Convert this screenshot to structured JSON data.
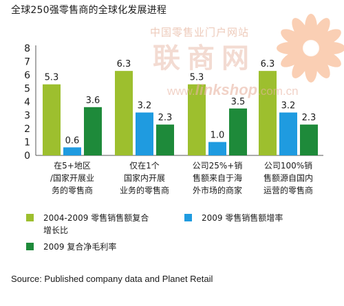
{
  "chart_data": {
    "type": "bar",
    "title": "全球250强零售商的全球化发展进程",
    "categories": [
      [
        "在5+地区",
        "/国家开展业",
        "务的零售商"
      ],
      [
        "仅在1个",
        "国家内开展",
        "业务的零售商"
      ],
      [
        "公司25%+销",
        "售额来自于海",
        "外市场的商家"
      ],
      [
        "公司100%销",
        "售额源自国内",
        "运营的零售商"
      ]
    ],
    "series": [
      {
        "name": "2004-2009 零售销售额复合增长比",
        "color": "#9dbf2e",
        "values": [
          5.3,
          6.3,
          5.3,
          6.3
        ]
      },
      {
        "name": "2009 零售销售额增率",
        "color": "#1f9be0",
        "values": [
          0.6,
          3.2,
          1.0,
          3.2
        ]
      },
      {
        "name": "2009 复合净毛利率",
        "color": "#1e8a3a",
        "values": [
          3.6,
          2.3,
          3.5,
          2.3
        ]
      }
    ],
    "data_labels": [
      [
        "5.3",
        "0.6",
        "3.6"
      ],
      [
        "6.3",
        "3.2",
        "2.3"
      ],
      [
        "5.3",
        "1.0",
        "3.5"
      ],
      [
        "6.3",
        "3.2",
        "2.3"
      ]
    ],
    "y_ticks": [
      "0",
      "1",
      "2",
      "3",
      "4",
      "5",
      "6",
      "7",
      "8"
    ],
    "ylim": [
      0,
      8
    ],
    "grid": false,
    "legend_position": "bottom",
    "source": "Source: Published company data and Planet Retail"
  },
  "legend": {
    "item1_line1": "2004-2009 零售销售额复合",
    "item1_line2": "增长比",
    "item2": "2009  零售销售额增率",
    "item3": "2009  复合净毛利率"
  },
  "watermark": {
    "cn_site": "中国零售业门户网站",
    "brand": "联商网",
    "url_prefix": "www.",
    "url_main": "linkshop",
    "url_suffix": ".com.cn"
  }
}
